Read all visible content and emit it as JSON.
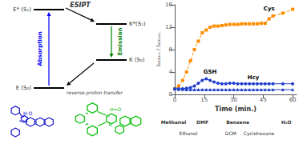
{
  "chart_data": {
    "type": "line",
    "xlabel": "Time (min.)",
    "ylabel": "I₅₃₅ₙₘ / I₄₇₀ₙₘ",
    "x": [
      0,
      2,
      4,
      6,
      8,
      10,
      12,
      14,
      16,
      18,
      20,
      22,
      24,
      26,
      28,
      30,
      32,
      34,
      36,
      38,
      40,
      42,
      44,
      46,
      48,
      50,
      55,
      60
    ],
    "series": [
      {
        "name": "Cys",
        "color": "#FF8C00",
        "marker": "square",
        "line_style": "dashed",
        "values": [
          1.0,
          1.5,
          2.5,
          4.0,
          6.0,
          8.0,
          9.5,
          11.0,
          11.5,
          12.0,
          12.2,
          12.2,
          12.3,
          12.4,
          12.5,
          12.5,
          12.5,
          12.6,
          12.6,
          12.6,
          12.6,
          12.6,
          12.7,
          12.7,
          13.5,
          14.0,
          14.5,
          15.2
        ]
      },
      {
        "name": "GSH",
        "color": "#1E3ECC",
        "marker": "circle",
        "line_style": "solid",
        "values": [
          1.0,
          1.0,
          1.0,
          1.1,
          1.2,
          1.5,
          2.0,
          2.5,
          2.8,
          2.5,
          2.2,
          2.0,
          1.9,
          1.9,
          2.0,
          2.0,
          1.9,
          1.9,
          1.9,
          1.9,
          1.9,
          1.9,
          1.9,
          1.9,
          1.9,
          1.9,
          1.9,
          1.9
        ]
      },
      {
        "name": "Hcy",
        "color": "#1E3ECC",
        "marker": "triangle",
        "line_style": "solid",
        "values": [
          1.0,
          0.9,
          0.9,
          0.85,
          0.85,
          0.85,
          0.85,
          0.85,
          0.85,
          0.85,
          0.85,
          0.85,
          0.85,
          0.85,
          0.85,
          0.85,
          0.85,
          0.85,
          0.85,
          0.85,
          0.85,
          0.85,
          0.85,
          0.85,
          0.85,
          0.85,
          0.85,
          0.85
        ]
      }
    ],
    "xlim": [
      0,
      62
    ],
    "ylim": [
      0,
      16
    ],
    "xticks": [
      0,
      15,
      30,
      45,
      60
    ],
    "yticks": [
      0,
      4,
      8,
      12,
      16
    ],
    "grid": false,
    "annotations": [
      {
        "text": "Cys",
        "x": 48,
        "y": 14.8
      },
      {
        "text": "GSH",
        "x": 18,
        "y": 3.5
      },
      {
        "text": "Hcy",
        "x": 40,
        "y": 2.5
      },
      {
        "text": "E* (S₁)"
      },
      {
        "text": "K*(S₁)"
      },
      {
        "text": "K (S₀)"
      },
      {
        "text": "E (S₀)"
      },
      {
        "text": "ESIPT"
      },
      {
        "text": "Absorption",
        "color": "#0000ff"
      },
      {
        "text": "Emission",
        "color": "#008000"
      },
      {
        "text": "reverse proton transfer"
      },
      {
        "text": "H·O",
        "color": "#0000CC"
      },
      {
        "text": "N",
        "color": "#0000CC"
      },
      {
        "text": "H",
        "color": "#0000CC"
      },
      {
        "text": "H=O",
        "color": "#00BB00"
      },
      {
        "text": "N",
        "color": "#00BB00"
      },
      {
        "text": "H",
        "color": "#00BB00"
      },
      {
        "text": "Methanol"
      },
      {
        "text": "DMF"
      },
      {
        "text": "Benzene"
      },
      {
        "text": "H₂O"
      },
      {
        "text": "Ethanol"
      },
      {
        "text": "DCM"
      },
      {
        "text": "Cyclohexane"
      }
    ]
  }
}
